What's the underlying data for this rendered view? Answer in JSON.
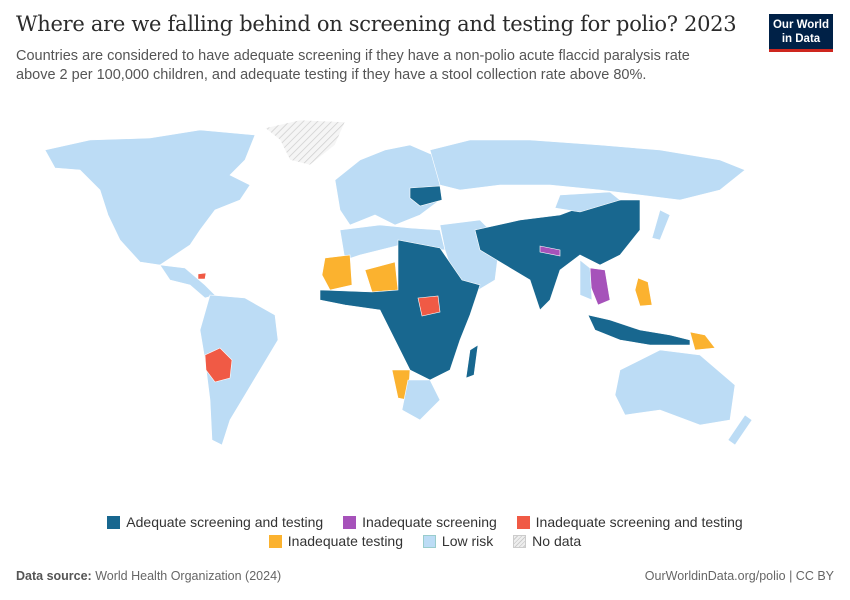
{
  "title": "Where are we falling behind on screening and testing for polio? 2023",
  "subtitle": "Countries are considered to have adequate screening if they have a non-polio acute flaccid paralysis rate above 2 per 100,000 children, and adequate testing if they have a stool collection rate above 80%.",
  "logo": {
    "line1": "Our World",
    "line2": "in Data"
  },
  "colors": {
    "adequate": "#18678f",
    "inadequate_screening": "#a652ba",
    "inadequate_both": "#f05a45",
    "inadequate_testing": "#fbb22f",
    "low_risk": "#bcdcf5",
    "no_data": "#e6e6e6"
  },
  "legend": [
    {
      "label": "Adequate screening and testing",
      "key": "adequate"
    },
    {
      "label": "Inadequate screening",
      "key": "inadequate_screening"
    },
    {
      "label": "Inadequate screening and testing",
      "key": "inadequate_both"
    },
    {
      "label": "Inadequate testing",
      "key": "inadequate_testing"
    },
    {
      "label": "Low risk",
      "key": "low_risk"
    },
    {
      "label": "No data",
      "key": "no_data"
    }
  ],
  "footer": {
    "source_label": "Data source:",
    "source": "World Health Organization (2024)",
    "link": "OurWorldinData.org/polio | CC BY"
  }
}
